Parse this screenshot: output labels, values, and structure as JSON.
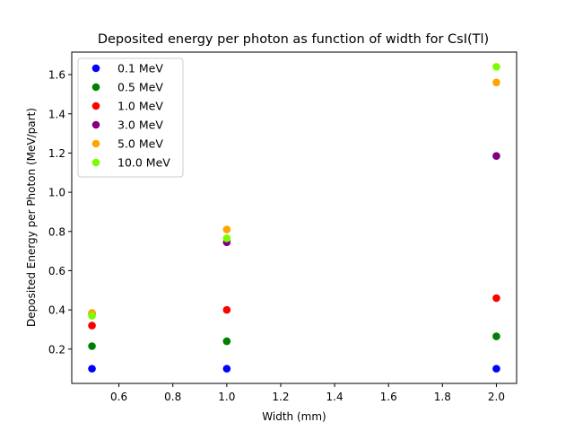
{
  "chart_data": {
    "type": "scatter",
    "title": "Deposited energy per photon as function of width for CsI(Tl)",
    "xlabel": "Width (mm)",
    "ylabel": "Deposited Energy per Photon (MeV/part)",
    "xlim": [
      0.425,
      2.075
    ],
    "ylim": [
      0.025,
      1.715
    ],
    "xticks": [
      0.6,
      0.8,
      1.0,
      1.2,
      1.4,
      1.6,
      1.8,
      2.0
    ],
    "xtick_labels": [
      "0.6",
      "0.8",
      "1.0",
      "1.2",
      "1.4",
      "1.6",
      "1.8",
      "2.0"
    ],
    "yticks": [
      0.2,
      0.4,
      0.6,
      0.8,
      1.0,
      1.2,
      1.4,
      1.6
    ],
    "ytick_labels": [
      "0.2",
      "0.4",
      "0.6",
      "0.8",
      "1.0",
      "1.2",
      "1.4",
      "1.6"
    ],
    "grid": false,
    "legend_position": "top-left",
    "x": [
      0.5,
      1.0,
      2.0
    ],
    "series": [
      {
        "name": "0.1 MeV",
        "color": "#0000ff",
        "values": [
          0.1,
          0.1,
          0.1
        ]
      },
      {
        "name": "0.5 MeV",
        "color": "#008000",
        "values": [
          0.215,
          0.24,
          0.265
        ]
      },
      {
        "name": "1.0 MeV",
        "color": "#ff0000",
        "values": [
          0.32,
          0.4,
          0.46
        ]
      },
      {
        "name": "3.0 MeV",
        "color": "#800080",
        "values": [
          0.38,
          0.745,
          1.185
        ]
      },
      {
        "name": "5.0 MeV",
        "color": "#ffa500",
        "values": [
          0.385,
          0.81,
          1.56
        ]
      },
      {
        "name": "10.0 MeV",
        "color": "#7cfc00",
        "values": [
          0.37,
          0.765,
          1.64
        ]
      }
    ]
  }
}
